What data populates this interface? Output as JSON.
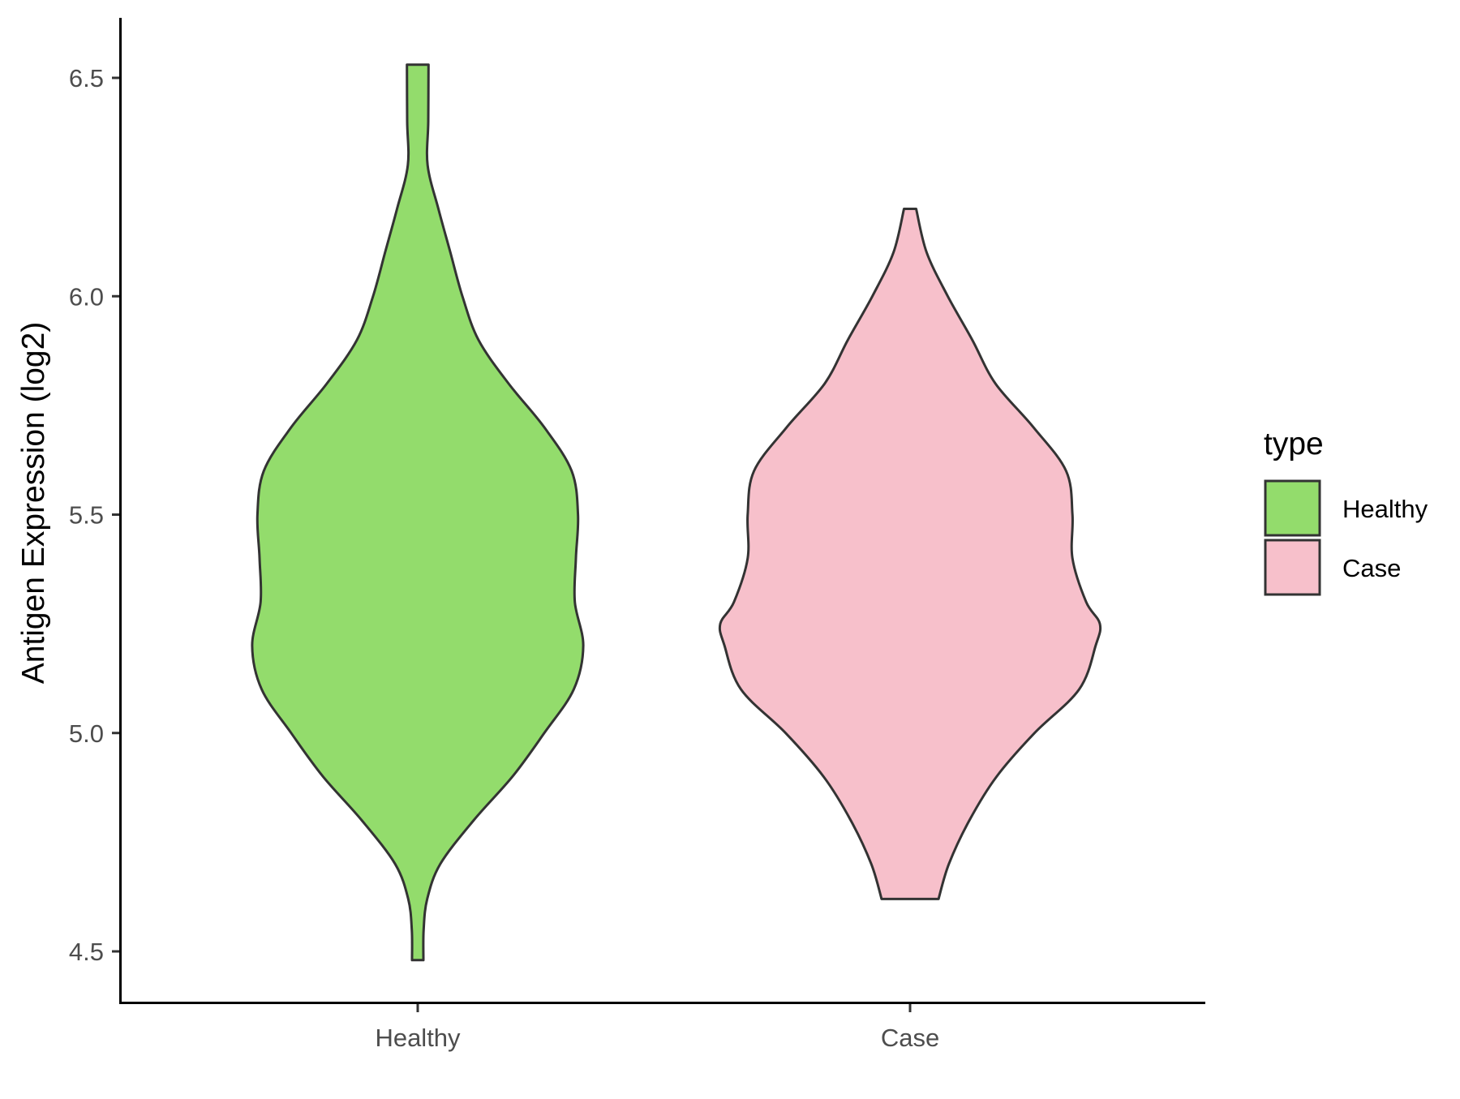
{
  "chart_data": {
    "type": "violin",
    "ylabel": "Antigen Expression (log2)",
    "xlabel": "",
    "categories": [
      "Healthy",
      "Case"
    ],
    "ylim": [
      4.37,
      6.63
    ],
    "yticks": [
      4.5,
      5.0,
      5.5,
      6.0,
      6.5
    ],
    "ytick_labels": [
      "4.5",
      "5.0",
      "5.5",
      "6.0",
      "6.5"
    ],
    "grid": false,
    "legend": {
      "title": "type",
      "position": "right",
      "entries": [
        {
          "label": "Healthy",
          "color": "#93dc6c"
        },
        {
          "label": "Case",
          "color": "#f7c0cb"
        }
      ]
    },
    "series": [
      {
        "category": "Healthy",
        "color": "#93dc6c",
        "min": 4.48,
        "max": 6.53,
        "profile": [
          [
            4.48,
            0.027
          ],
          [
            4.55,
            0.028
          ],
          [
            4.62,
            0.045
          ],
          [
            4.7,
            0.107
          ],
          [
            4.8,
            0.265
          ],
          [
            4.9,
            0.449
          ],
          [
            5.0,
            0.6
          ],
          [
            5.1,
            0.74
          ],
          [
            5.2,
            0.785
          ],
          [
            5.3,
            0.745
          ],
          [
            5.4,
            0.75
          ],
          [
            5.5,
            0.76
          ],
          [
            5.6,
            0.73
          ],
          [
            5.7,
            0.6
          ],
          [
            5.8,
            0.431
          ],
          [
            5.9,
            0.288
          ],
          [
            6.0,
            0.212
          ],
          [
            6.1,
            0.155
          ],
          [
            6.2,
            0.098
          ],
          [
            6.3,
            0.047
          ],
          [
            6.4,
            0.05
          ],
          [
            6.53,
            0.051
          ]
        ]
      },
      {
        "category": "Case",
        "color": "#f7c0cb",
        "min": 4.62,
        "max": 6.2,
        "profile": [
          [
            4.62,
            0.135
          ],
          [
            4.7,
            0.184
          ],
          [
            4.8,
            0.281
          ],
          [
            4.9,
            0.41
          ],
          [
            5.0,
            0.59
          ],
          [
            5.1,
            0.802
          ],
          [
            5.2,
            0.88
          ],
          [
            5.25,
            0.9
          ],
          [
            5.3,
            0.835
          ],
          [
            5.4,
            0.77
          ],
          [
            5.5,
            0.77
          ],
          [
            5.6,
            0.74
          ],
          [
            5.7,
            0.585
          ],
          [
            5.8,
            0.405
          ],
          [
            5.9,
            0.295
          ],
          [
            6.0,
            0.179
          ],
          [
            6.1,
            0.079
          ],
          [
            6.2,
            0.029
          ]
        ]
      }
    ]
  }
}
